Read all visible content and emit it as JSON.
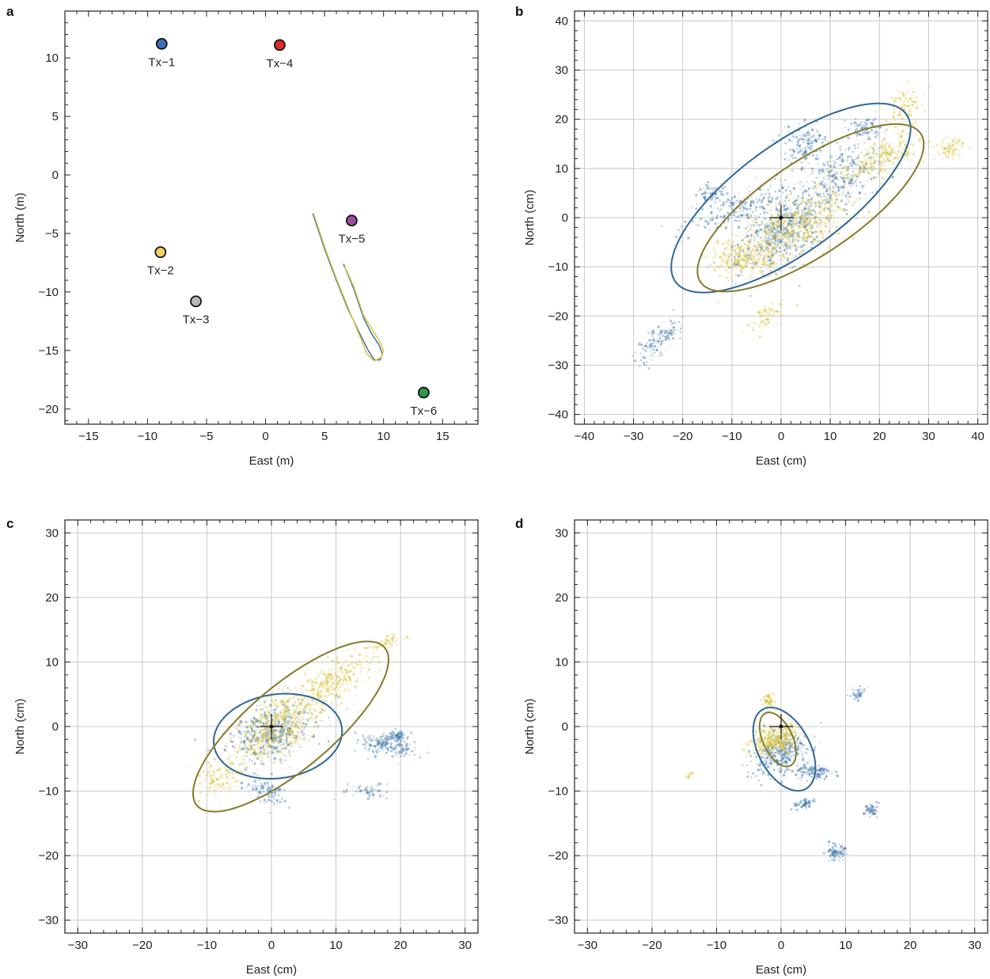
{
  "colors": {
    "blue": "#3b74a8",
    "yellow": "#d9c23e",
    "blue_ellipse": "#2f6796",
    "yellow_ellipse": "#857a2a",
    "grid": "#c8c8c8",
    "frame": "#222222"
  },
  "chart_data": [
    {
      "panel": "a",
      "type": "scatter",
      "xlabel": "East (m)",
      "ylabel": "North (m)",
      "xlim": [
        -17,
        18
      ],
      "ylim": [
        -21.3,
        14
      ],
      "xticks": [
        -15,
        -10,
        -5,
        0,
        5,
        10,
        15
      ],
      "xtick_labels": [
        "−15",
        "−10",
        "−5",
        "0",
        "5",
        "10",
        "15"
      ],
      "yticks": [
        -20,
        -15,
        -10,
        -5,
        0,
        5,
        10
      ],
      "ytick_labels": [
        "−20",
        "−15",
        "−10",
        "−5",
        "0",
        "5",
        "10"
      ],
      "grid": false,
      "points": [
        {
          "label": "Tx−1",
          "x": -8.8,
          "y": 11.2,
          "color": "#3d6fb6"
        },
        {
          "label": "Tx−2",
          "x": -8.9,
          "y": -6.6,
          "color": "#f3cf63"
        },
        {
          "label": "Tx−3",
          "x": -5.9,
          "y": -10.8,
          "color": "#b9b9b9"
        },
        {
          "label": "Tx−4",
          "x": 1.2,
          "y": 11.1,
          "color": "#e02b2b"
        },
        {
          "label": "Tx−5",
          "x": 7.3,
          "y": -3.9,
          "color": "#a04aa8"
        },
        {
          "label": "Tx−6",
          "x": 13.4,
          "y": -18.6,
          "color": "#2f9a4d"
        }
      ],
      "trajectories": [
        {
          "color": "blue",
          "points": [
            [
              4.0,
              -3.3
            ],
            [
              5.0,
              -6.3
            ],
            [
              6.0,
              -9.0
            ],
            [
              7.0,
              -11.5
            ],
            [
              8.0,
              -13.6
            ],
            [
              8.7,
              -15.0
            ],
            [
              9.2,
              -15.8
            ],
            [
              9.7,
              -15.8
            ],
            [
              9.9,
              -15.3
            ],
            [
              9.6,
              -14.5
            ],
            [
              9.0,
              -13.6
            ],
            [
              8.3,
              -12.2
            ],
            [
              7.5,
              -9.8
            ],
            [
              6.6,
              -7.6
            ]
          ]
        },
        {
          "color": "yellow",
          "points": [
            [
              4.1,
              -3.4
            ],
            [
              5.1,
              -6.4
            ],
            [
              6.1,
              -9.1
            ],
            [
              7.1,
              -11.6
            ],
            [
              8.0,
              -13.8
            ],
            [
              8.6,
              -15.3
            ],
            [
              9.2,
              -15.9
            ],
            [
              9.8,
              -15.6
            ],
            [
              10.0,
              -15.0
            ],
            [
              9.7,
              -14.3
            ],
            [
              9.1,
              -13.3
            ],
            [
              8.3,
              -12.0
            ],
            [
              7.5,
              -9.6
            ],
            [
              6.7,
              -7.8
            ]
          ]
        }
      ]
    },
    {
      "panel": "b",
      "type": "scatter",
      "xlabel": "East (cm)",
      "ylabel": "North (cm)",
      "xlim": [
        -42,
        42
      ],
      "ylim": [
        -42,
        42
      ],
      "xticks": [
        -40,
        -30,
        -20,
        -10,
        0,
        10,
        20,
        30,
        40
      ],
      "xtick_labels": [
        "−40",
        "−30",
        "−20",
        "−10",
        "0",
        "10",
        "20",
        "30",
        "40"
      ],
      "yticks": [
        -40,
        -30,
        -20,
        -10,
        0,
        10,
        20,
        30,
        40
      ],
      "ytick_labels": [
        "−40",
        "−30",
        "−20",
        "−10",
        "0",
        "10",
        "20",
        "30",
        "40"
      ],
      "grid": true,
      "clouds": [
        {
          "color": "blue",
          "clusters": [
            [
              0,
              -3,
              10,
              5,
              35,
              500
            ],
            [
              12,
              8,
              8,
              5,
              35,
              300
            ],
            [
              -8,
              2,
              10,
              3,
              20,
              220
            ],
            [
              -25,
              -25,
              6,
              2,
              45,
              140
            ],
            [
              5,
              15,
              4,
              4,
              40,
              150
            ],
            [
              17,
              18,
              3,
              2,
              0,
              80
            ],
            [
              -14,
              5,
              3,
              1.5,
              10,
              60
            ]
          ]
        },
        {
          "color": "yellow",
          "clusters": [
            [
              3,
              -2,
              11,
              5,
              30,
              650
            ],
            [
              20,
              12,
              8,
              3,
              25,
              300
            ],
            [
              -8,
              -8,
              6,
              3,
              0,
              250
            ],
            [
              25,
              22,
              4,
              3,
              60,
              120
            ],
            [
              34,
              14,
              3,
              2,
              10,
              90
            ],
            [
              -3,
              -20,
              4,
              2,
              40,
              80
            ]
          ]
        }
      ],
      "ellipses": [
        {
          "color": "blue_ellipse",
          "cx": 2,
          "cy": 4,
          "a": 29,
          "b": 11,
          "angle": 36
        },
        {
          "color": "yellow_ellipse",
          "cx": 6,
          "cy": 2,
          "a": 27,
          "b": 9.5,
          "angle": 34
        }
      ],
      "origin_marker": {
        "x": 0,
        "y": 0
      }
    },
    {
      "panel": "c",
      "type": "scatter",
      "xlabel": "East (cm)",
      "ylabel": "North (cm)",
      "xlim": [
        -32,
        32
      ],
      "ylim": [
        -32,
        32
      ],
      "xticks": [
        -30,
        -20,
        -10,
        0,
        10,
        20,
        30
      ],
      "xtick_labels": [
        "−30",
        "−20",
        "−10",
        "0",
        "10",
        "20",
        "30"
      ],
      "yticks": [
        -30,
        -20,
        -10,
        0,
        10,
        20,
        30
      ],
      "ytick_labels": [
        "−30",
        "−20",
        "−10",
        "0",
        "10",
        "20",
        "30"
      ],
      "grid": true,
      "clouds": [
        {
          "color": "blue",
          "clusters": [
            [
              0,
              -1,
              6,
              3.5,
              25,
              450
            ],
            [
              18,
              -3,
              1.5,
              4,
              80,
              200
            ],
            [
              19.5,
              -1.5,
              1.2,
              0.8,
              0,
              80
            ],
            [
              -1,
              -10,
              2,
              3,
              60,
              100
            ],
            [
              15,
              -10,
              1,
              3,
              90,
              60
            ]
          ]
        },
        {
          "color": "yellow",
          "clusters": [
            [
              1,
              0,
              8,
              3.5,
              38,
              650
            ],
            [
              10,
              7,
              6,
              2.5,
              35,
              300
            ],
            [
              -8,
              -8,
              3,
              2,
              30,
              120
            ],
            [
              18,
              13,
              2,
              1,
              20,
              60
            ]
          ]
        }
      ],
      "ellipses": [
        {
          "color": "blue_ellipse",
          "cx": 1,
          "cy": -1.5,
          "a": 10,
          "b": 6.5,
          "angle": 8
        },
        {
          "color": "yellow_ellipse",
          "cx": 3,
          "cy": 0,
          "a": 19,
          "b": 6.5,
          "angle": 40
        }
      ],
      "origin_marker": {
        "x": 0,
        "y": 0
      }
    },
    {
      "panel": "d",
      "type": "scatter",
      "xlabel": "East (cm)",
      "ylabel": "North (cm)",
      "xlim": [
        -32,
        32
      ],
      "ylim": [
        -32,
        32
      ],
      "xticks": [
        -30,
        -20,
        -10,
        0,
        10,
        20,
        30
      ],
      "xtick_labels": [
        "−30",
        "−20",
        "−10",
        "0",
        "10",
        "20",
        "30"
      ],
      "yticks": [
        -30,
        -20,
        -10,
        0,
        10,
        20,
        30
      ],
      "ytick_labels": [
        "−30",
        "−20",
        "−10",
        "0",
        "10",
        "20",
        "30"
      ],
      "grid": true,
      "clouds": [
        {
          "color": "blue",
          "clusters": [
            [
              0,
              -4,
              2.5,
              4.5,
              120,
              350
            ],
            [
              5,
              -7,
              2.5,
              1,
              0,
              120
            ],
            [
              3.5,
              -12,
              1.5,
              0.8,
              20,
              60
            ],
            [
              8.5,
              -19.5,
              1.2,
              1,
              0,
              80
            ],
            [
              14,
              -13,
              1,
              1,
              30,
              50
            ],
            [
              12,
              5,
              1.5,
              1,
              20,
              40
            ]
          ]
        },
        {
          "color": "yellow",
          "clusters": [
            [
              -1,
              -2,
              1.8,
              3.5,
              110,
              400
            ],
            [
              -2,
              4,
              1,
              1,
              0,
              60
            ],
            [
              -14,
              -7.5,
              0.6,
              0.6,
              0,
              15
            ]
          ]
        }
      ],
      "ellipses": [
        {
          "color": "blue_ellipse",
          "cx": 0.5,
          "cy": -3.5,
          "a": 7,
          "b": 4,
          "angle": -62
        },
        {
          "color": "yellow_ellipse",
          "cx": -0.5,
          "cy": -2,
          "a": 4.5,
          "b": 2.3,
          "angle": -65
        }
      ],
      "origin_marker": {
        "x": 0,
        "y": 0
      }
    }
  ]
}
